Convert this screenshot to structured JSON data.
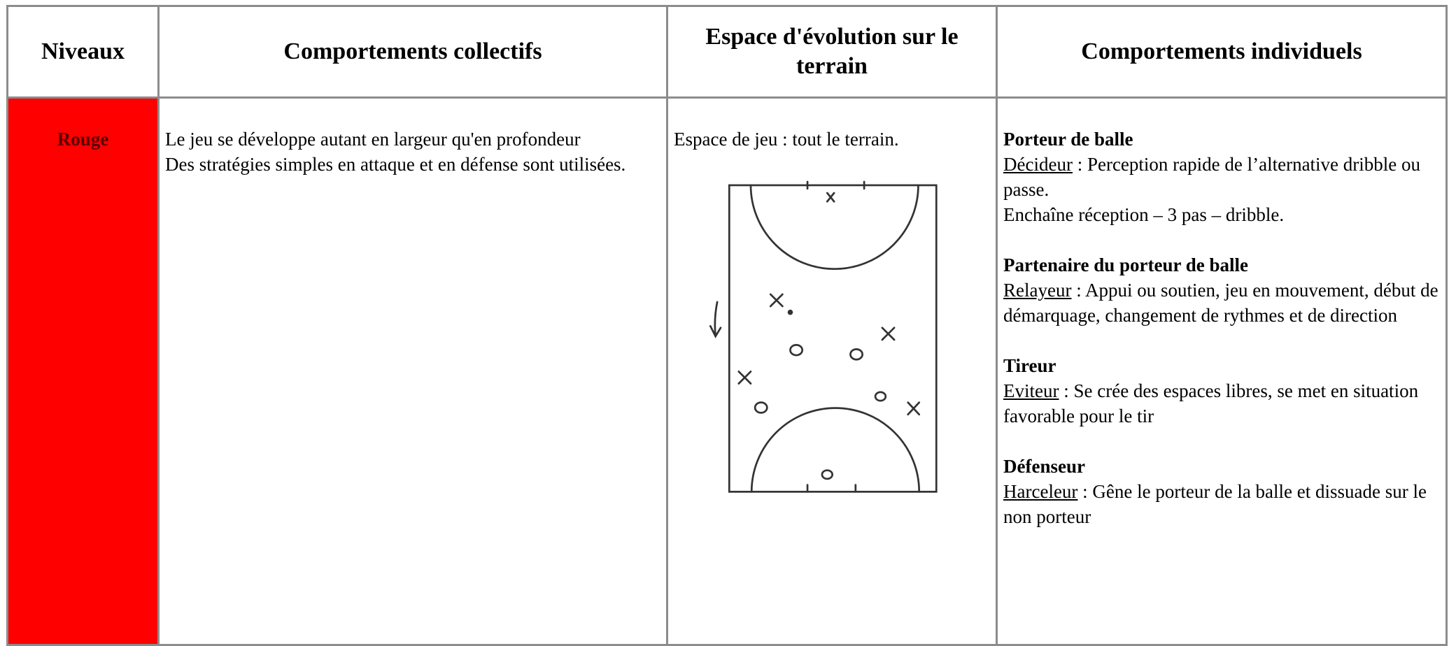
{
  "table": {
    "headers": [
      "Niveaux",
      "Comportements collectifs",
      "Espace d'évolution sur le terrain",
      "Comportements individuels"
    ],
    "rows": [
      {
        "level": "Rouge",
        "collective": [
          "Le jeu se développe autant en largeur qu'en profondeur",
          "Des stratégies simples en attaque et en défense sont utilisées."
        ],
        "space": "Espace de jeu : tout le terrain.",
        "individual": [
          {
            "title": "Porteur de balle",
            "role": "Décideur",
            "lines": [
              " : Perception rapide de l’alternative dribble ou passe.",
              "Enchaîne réception – 3 pas – dribble."
            ]
          },
          {
            "title": "Partenaire du porteur de balle",
            "role": "Relayeur",
            "lines": [
              " : Appui ou soutien, jeu en mouvement,  début de démarquage, changement de rythmes et de direction"
            ]
          },
          {
            "title": "Tireur",
            "role": "Eviteur",
            "lines": [
              " : Se crée des espaces libres, se met en situation favorable pour le tir"
            ]
          },
          {
            "title": "Défenseur",
            "role": "Harceleur",
            "lines": [
              " : Gêne le porteur de la balle et dissuade sur le non porteur"
            ]
          }
        ]
      }
    ]
  }
}
